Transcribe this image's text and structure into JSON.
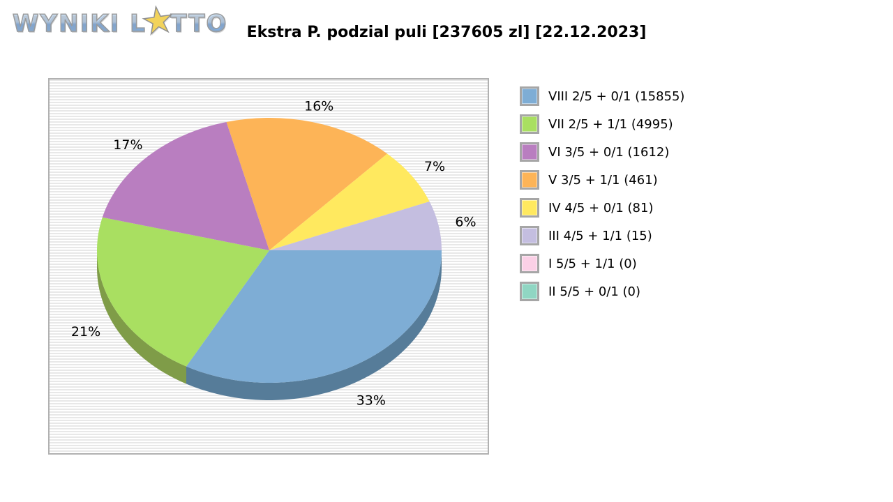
{
  "logo": {
    "text_before": "WYNIKI L",
    "star": "★",
    "text_after": "TTO",
    "alt": "WYNIKI LOTTO"
  },
  "title": "Ekstra P. podzial puli [237605 zl] [22.12.2023]",
  "chart_data": {
    "type": "pie",
    "title": "Ekstra P. podzial puli [237605 zl] [22.12.2023]",
    "effect": "3d",
    "legend_position": "right",
    "label_format": "percent",
    "slices": [
      {
        "tier": "VIII 2/5 + 0/1",
        "winners": 15855,
        "percent": 33,
        "label": "VIII 2/5 + 0/1 (15855)",
        "color": "#7EADD5",
        "side_color": "#567C99"
      },
      {
        "tier": "VII 2/5 + 1/1",
        "winners": 4995,
        "percent": 21,
        "label": "VII 2/5 + 1/1 (4995)",
        "color": "#A9DF61",
        "side_color": "#7F9C48"
      },
      {
        "tier": "VI 3/5 + 0/1",
        "winners": 1612,
        "percent": 17,
        "label": "VI 3/5 + 0/1 (1612)",
        "color": "#B97EC0",
        "side_color": "#8B5E90"
      },
      {
        "tier": "V 3/5 + 1/1",
        "winners": 461,
        "percent": 16,
        "label": "V 3/5 + 1/1 (461)",
        "color": "#FDB457",
        "side_color": "#BD8741"
      },
      {
        "tier": "IV 4/5 + 0/1",
        "winners": 81,
        "percent": 7,
        "label": "IV 4/5 + 0/1 (81)",
        "color": "#FFE95F",
        "side_color": "#BFAF47"
      },
      {
        "tier": "III 4/5 + 1/1",
        "winners": 15,
        "percent": 6,
        "label": "III 4/5 + 1/1 (15)",
        "color": "#C4BEE0",
        "side_color": "#938EA8"
      },
      {
        "tier": "I 5/5 + 1/1",
        "winners": 0,
        "percent": 0,
        "label": "I 5/5 + 1/1 (0)",
        "color": "#FBD0E6",
        "side_color": "#BC9CAD"
      },
      {
        "tier": "II 5/5 + 0/1",
        "winners": 0,
        "percent": 0,
        "label": "II 5/5 + 0/1 (0)",
        "color": "#90D6C3",
        "side_color": "#6CA092"
      }
    ]
  }
}
